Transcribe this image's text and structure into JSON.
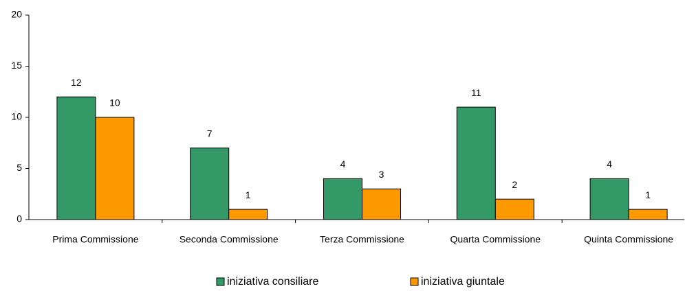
{
  "chart_data": {
    "type": "bar",
    "categories": [
      "Prima Commissione",
      "Seconda Commissione",
      "Terza Commissione",
      "Quarta Commissione",
      "Quinta Commissione"
    ],
    "series": [
      {
        "name": "iniziativa consiliare",
        "color": "#339966",
        "values": [
          12,
          7,
          4,
          11,
          4
        ]
      },
      {
        "name": "iniziativa giuntale",
        "color": "#ff9900",
        "values": [
          10,
          1,
          3,
          2,
          1
        ]
      }
    ],
    "ylim": [
      0,
      20
    ],
    "yticks": [
      0,
      5,
      10,
      15,
      20
    ],
    "grid": false,
    "legend": "bottom"
  }
}
